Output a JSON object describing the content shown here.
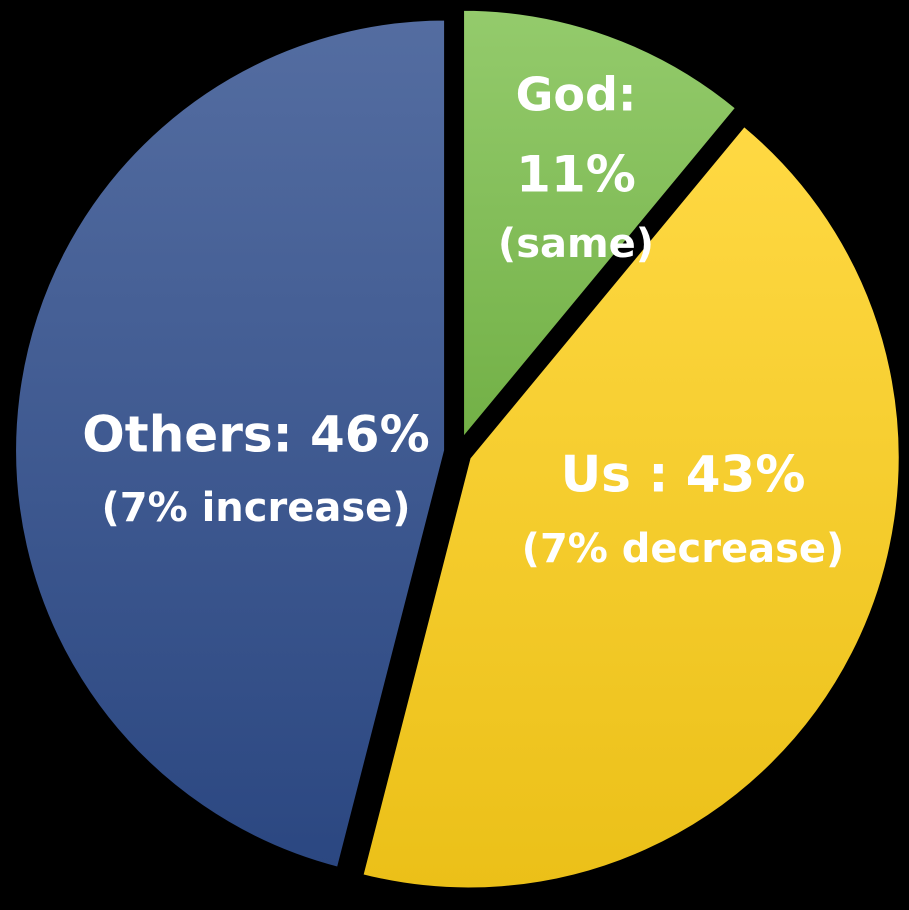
{
  "chart_data": {
    "type": "pie",
    "slices": [
      {
        "category": "God",
        "value": 11,
        "label_lines": [
          "God:",
          "11%",
          "(same)"
        ],
        "color": "#7cbf4c",
        "text_color": "#ffffff"
      },
      {
        "category": "Us",
        "value": 43,
        "label_lines": [
          "Us : 43%",
          "(7% decrease)"
        ],
        "color": "#ffd11a",
        "text_color": "#ffffff"
      },
      {
        "category": "Others",
        "value": 46,
        "label_lines": [
          "Others: 46%",
          "(7% increase)"
        ],
        "color": "#2f4d8c",
        "text_color": "#ffffff"
      }
    ],
    "start_angle_deg": 0,
    "direction": "clockwise",
    "exploded": true,
    "background": "#000000"
  }
}
